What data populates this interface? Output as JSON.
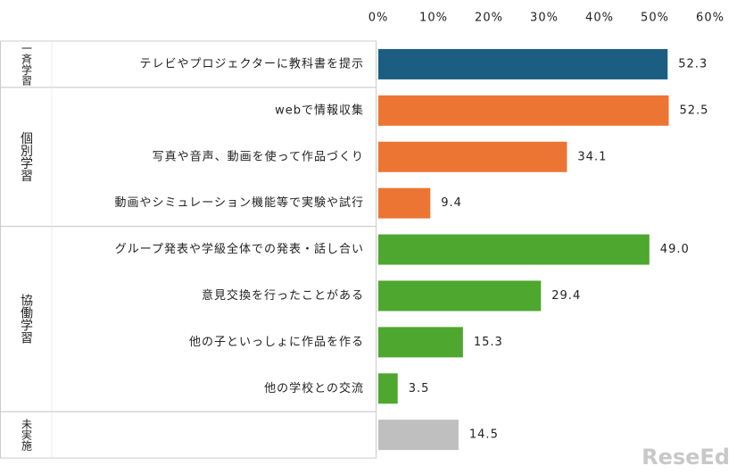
{
  "chart_data": {
    "type": "bar",
    "orientation": "horizontal",
    "xlim": [
      0,
      60
    ],
    "xticks": [
      {
        "value": 0,
        "label": "0%"
      },
      {
        "value": 10,
        "label": "10%"
      },
      {
        "value": 20,
        "label": "20%"
      },
      {
        "value": 30,
        "label": "30%"
      },
      {
        "value": 40,
        "label": "40%"
      },
      {
        "value": 50,
        "label": "50%"
      },
      {
        "value": 60,
        "label": "60%"
      }
    ],
    "grid": false,
    "series": [
      {
        "name": "一斉学習",
        "color": "#1b5e82",
        "categories": [
          "テレビやプロジェクターに教科書を提示"
        ],
        "values": [
          52.3
        ],
        "value_labels": [
          "52.3"
        ]
      },
      {
        "name": "個別学習",
        "color": "#ec7533",
        "categories": [
          "webで情報収集",
          "写真や音声、動画を使って作品づくり",
          "動画やシミュレーション機能等で実験や試行"
        ],
        "values": [
          52.5,
          34.1,
          9.4
        ],
        "value_labels": [
          "52.5",
          "34.1",
          "9.4"
        ]
      },
      {
        "name": "協働学習",
        "color": "#4ea72e",
        "categories": [
          "グループ発表や学級全体での発表・話し合い",
          "意見交換を行ったことがある",
          "他の子といっしょに作品を作る",
          "他の学校との交流"
        ],
        "values": [
          49.0,
          29.4,
          15.3,
          3.5
        ],
        "value_labels": [
          "49.0",
          "29.4",
          "15.3",
          "3.5"
        ]
      },
      {
        "name": "未実施",
        "color": "#bfbfbf",
        "categories": [
          null
        ],
        "values": [
          14.5
        ],
        "value_labels": [
          "14.5"
        ]
      }
    ],
    "watermark": "ReseEd"
  }
}
